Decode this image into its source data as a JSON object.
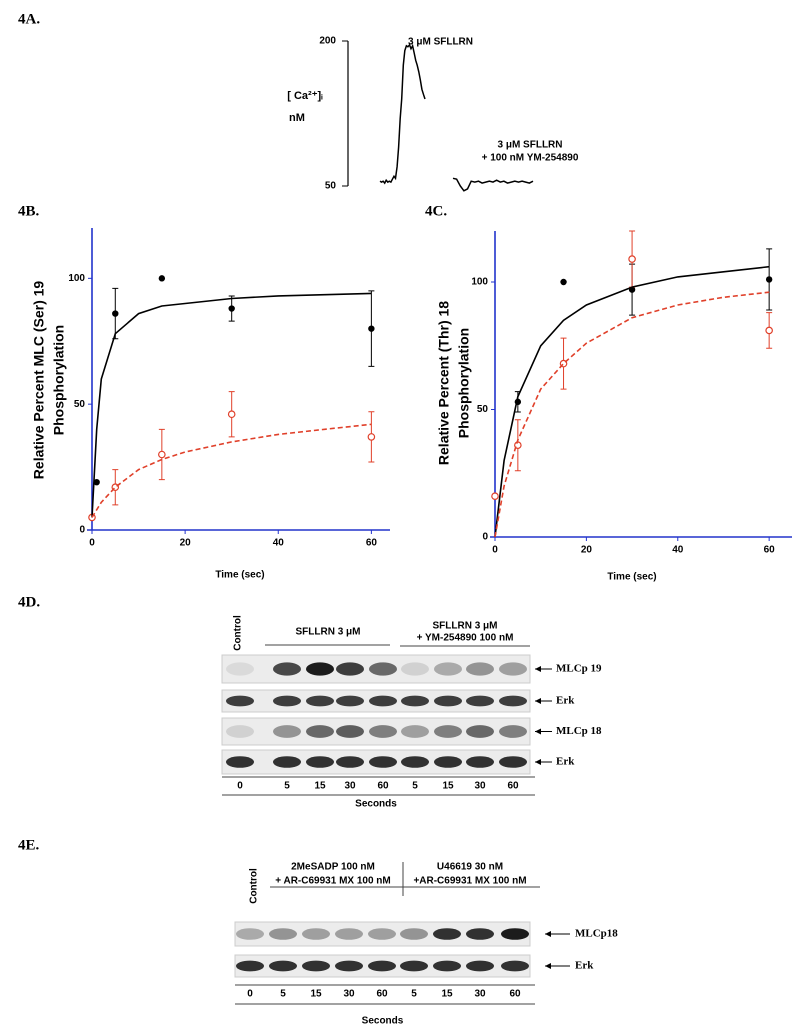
{
  "panel_labels": [
    "4A.",
    "4B.",
    "4C.",
    "4D.",
    "4E."
  ],
  "chart_data": [
    {
      "type": "line",
      "ylabel_lines": [
        "[ Ca²⁺]ᵢ",
        "nM"
      ],
      "annotations": [
        "3 μM SFLLRN",
        "3 μM SFLLRN",
        "+ 100 nM YM-254890"
      ],
      "ylim": [
        50,
        200
      ],
      "yticks": [
        50,
        200
      ],
      "series": [
        {
          "color": "#000000",
          "values": [
            55,
            54,
            55,
            53,
            56,
            54,
            55,
            54,
            57,
            60,
            58,
            70,
            90,
            120,
            140,
            175,
            190,
            195,
            194,
            196,
            192,
            195,
            188,
            180,
            175,
            168,
            160,
            150,
            145,
            140
          ]
        },
        {
          "color": "#000000",
          "values": [
            58,
            57,
            50,
            45,
            47,
            55,
            54,
            55,
            53,
            54,
            55,
            54,
            56,
            54,
            55,
            53,
            54,
            55,
            54,
            55,
            54,
            53,
            55
          ]
        }
      ]
    },
    {
      "type": "scatter",
      "ylabel_lines": [
        "Relative Percent MLC (Ser) 19",
        "Phosphorylation"
      ],
      "xlabel": "Time (sec)",
      "xlim": [
        0,
        64
      ],
      "ylim": [
        0,
        120
      ],
      "xticks": [
        0,
        20,
        40,
        60
      ],
      "yticks": [
        0,
        50,
        100
      ],
      "series": [
        {
          "style": "points",
          "marker": "filled",
          "color": "#000000",
          "x": [
            0,
            1,
            5,
            15,
            30,
            60
          ],
          "values": [
            5,
            19,
            86,
            100,
            88,
            80
          ],
          "errors": [
            null,
            null,
            10,
            null,
            5,
            15
          ]
        },
        {
          "style": "points",
          "marker": "open",
          "color": "#e0402a",
          "x": [
            0,
            5,
            15,
            30,
            60
          ],
          "values": [
            5,
            17,
            30,
            46,
            37
          ],
          "errors": [
            null,
            7,
            10,
            9,
            10
          ]
        },
        {
          "style": "line",
          "dashed": false,
          "color": "#000000",
          "x": [
            0,
            1,
            2,
            5,
            10,
            15,
            20,
            30,
            40,
            50,
            60
          ],
          "values": [
            5,
            40,
            60,
            78,
            86,
            89,
            90,
            92,
            93,
            93.5,
            94
          ]
        },
        {
          "style": "line",
          "dashed": true,
          "color": "#e0402a",
          "x": [
            0,
            2,
            5,
            10,
            15,
            20,
            30,
            40,
            50,
            60
          ],
          "values": [
            5,
            11,
            17,
            24,
            28,
            31,
            35,
            38,
            40,
            42
          ]
        }
      ]
    },
    {
      "type": "scatter",
      "ylabel_lines": [
        "Relative Percent (Thr) 18",
        "Phosphorylation"
      ],
      "xlabel": "Time (sec)",
      "xlim": [
        0,
        65
      ],
      "ylim": [
        0,
        120
      ],
      "xticks": [
        0,
        20,
        40,
        60
      ],
      "yticks": [
        0,
        50,
        100
      ],
      "series": [
        {
          "style": "points",
          "marker": "filled",
          "color": "#000000",
          "x": [
            0,
            5,
            15,
            30,
            60
          ],
          "values": [
            16,
            53,
            100,
            97,
            101
          ],
          "errors": [
            null,
            4,
            null,
            10,
            12
          ]
        },
        {
          "style": "points",
          "marker": "open",
          "color": "#e0402a",
          "x": [
            0,
            5,
            15,
            30,
            60
          ],
          "values": [
            16,
            36,
            68,
            109,
            81
          ],
          "errors": [
            null,
            10,
            10,
            11,
            7
          ]
        },
        {
          "style": "line",
          "dashed": false,
          "color": "#000000",
          "x": [
            0,
            2,
            5,
            10,
            15,
            20,
            30,
            40,
            50,
            60
          ],
          "values": [
            0,
            30,
            55,
            75,
            85,
            91,
            98,
            102,
            104,
            106
          ]
        },
        {
          "style": "line",
          "dashed": true,
          "color": "#e0402a",
          "x": [
            0,
            2,
            5,
            10,
            15,
            20,
            30,
            40,
            50,
            60
          ],
          "values": [
            0,
            20,
            38,
            58,
            68,
            76,
            86,
            91,
            94,
            96
          ]
        }
      ]
    }
  ],
  "blots": [
    {
      "lane_header": "Control",
      "groups": [
        {
          "lines": [
            "SFLLRN 3 μM"
          ]
        },
        {
          "lines": [
            "SFLLRN 3 μM",
            "+ YM-254890 100 nM"
          ]
        }
      ],
      "rows": [
        "MLCp 19",
        "Erk",
        "MLCp 18",
        "Erk"
      ],
      "lanes": [
        0,
        5,
        15,
        30,
        60,
        5,
        15,
        30,
        60
      ],
      "xlabel": "Seconds"
    },
    {
      "lane_header": "Control",
      "groups": [
        {
          "lines": [
            "2MeSADP 100 nM",
            "+ AR-C69931 MX 100 nM"
          ]
        },
        {
          "lines": [
            "U46619 30 nM",
            "+AR-C69931 MX 100 nM"
          ]
        }
      ],
      "rows": [
        "MLCp18",
        "Erk"
      ],
      "lanes": [
        0,
        5,
        15,
        30,
        60,
        5,
        15,
        30,
        60
      ],
      "xlabel": "Seconds"
    }
  ]
}
